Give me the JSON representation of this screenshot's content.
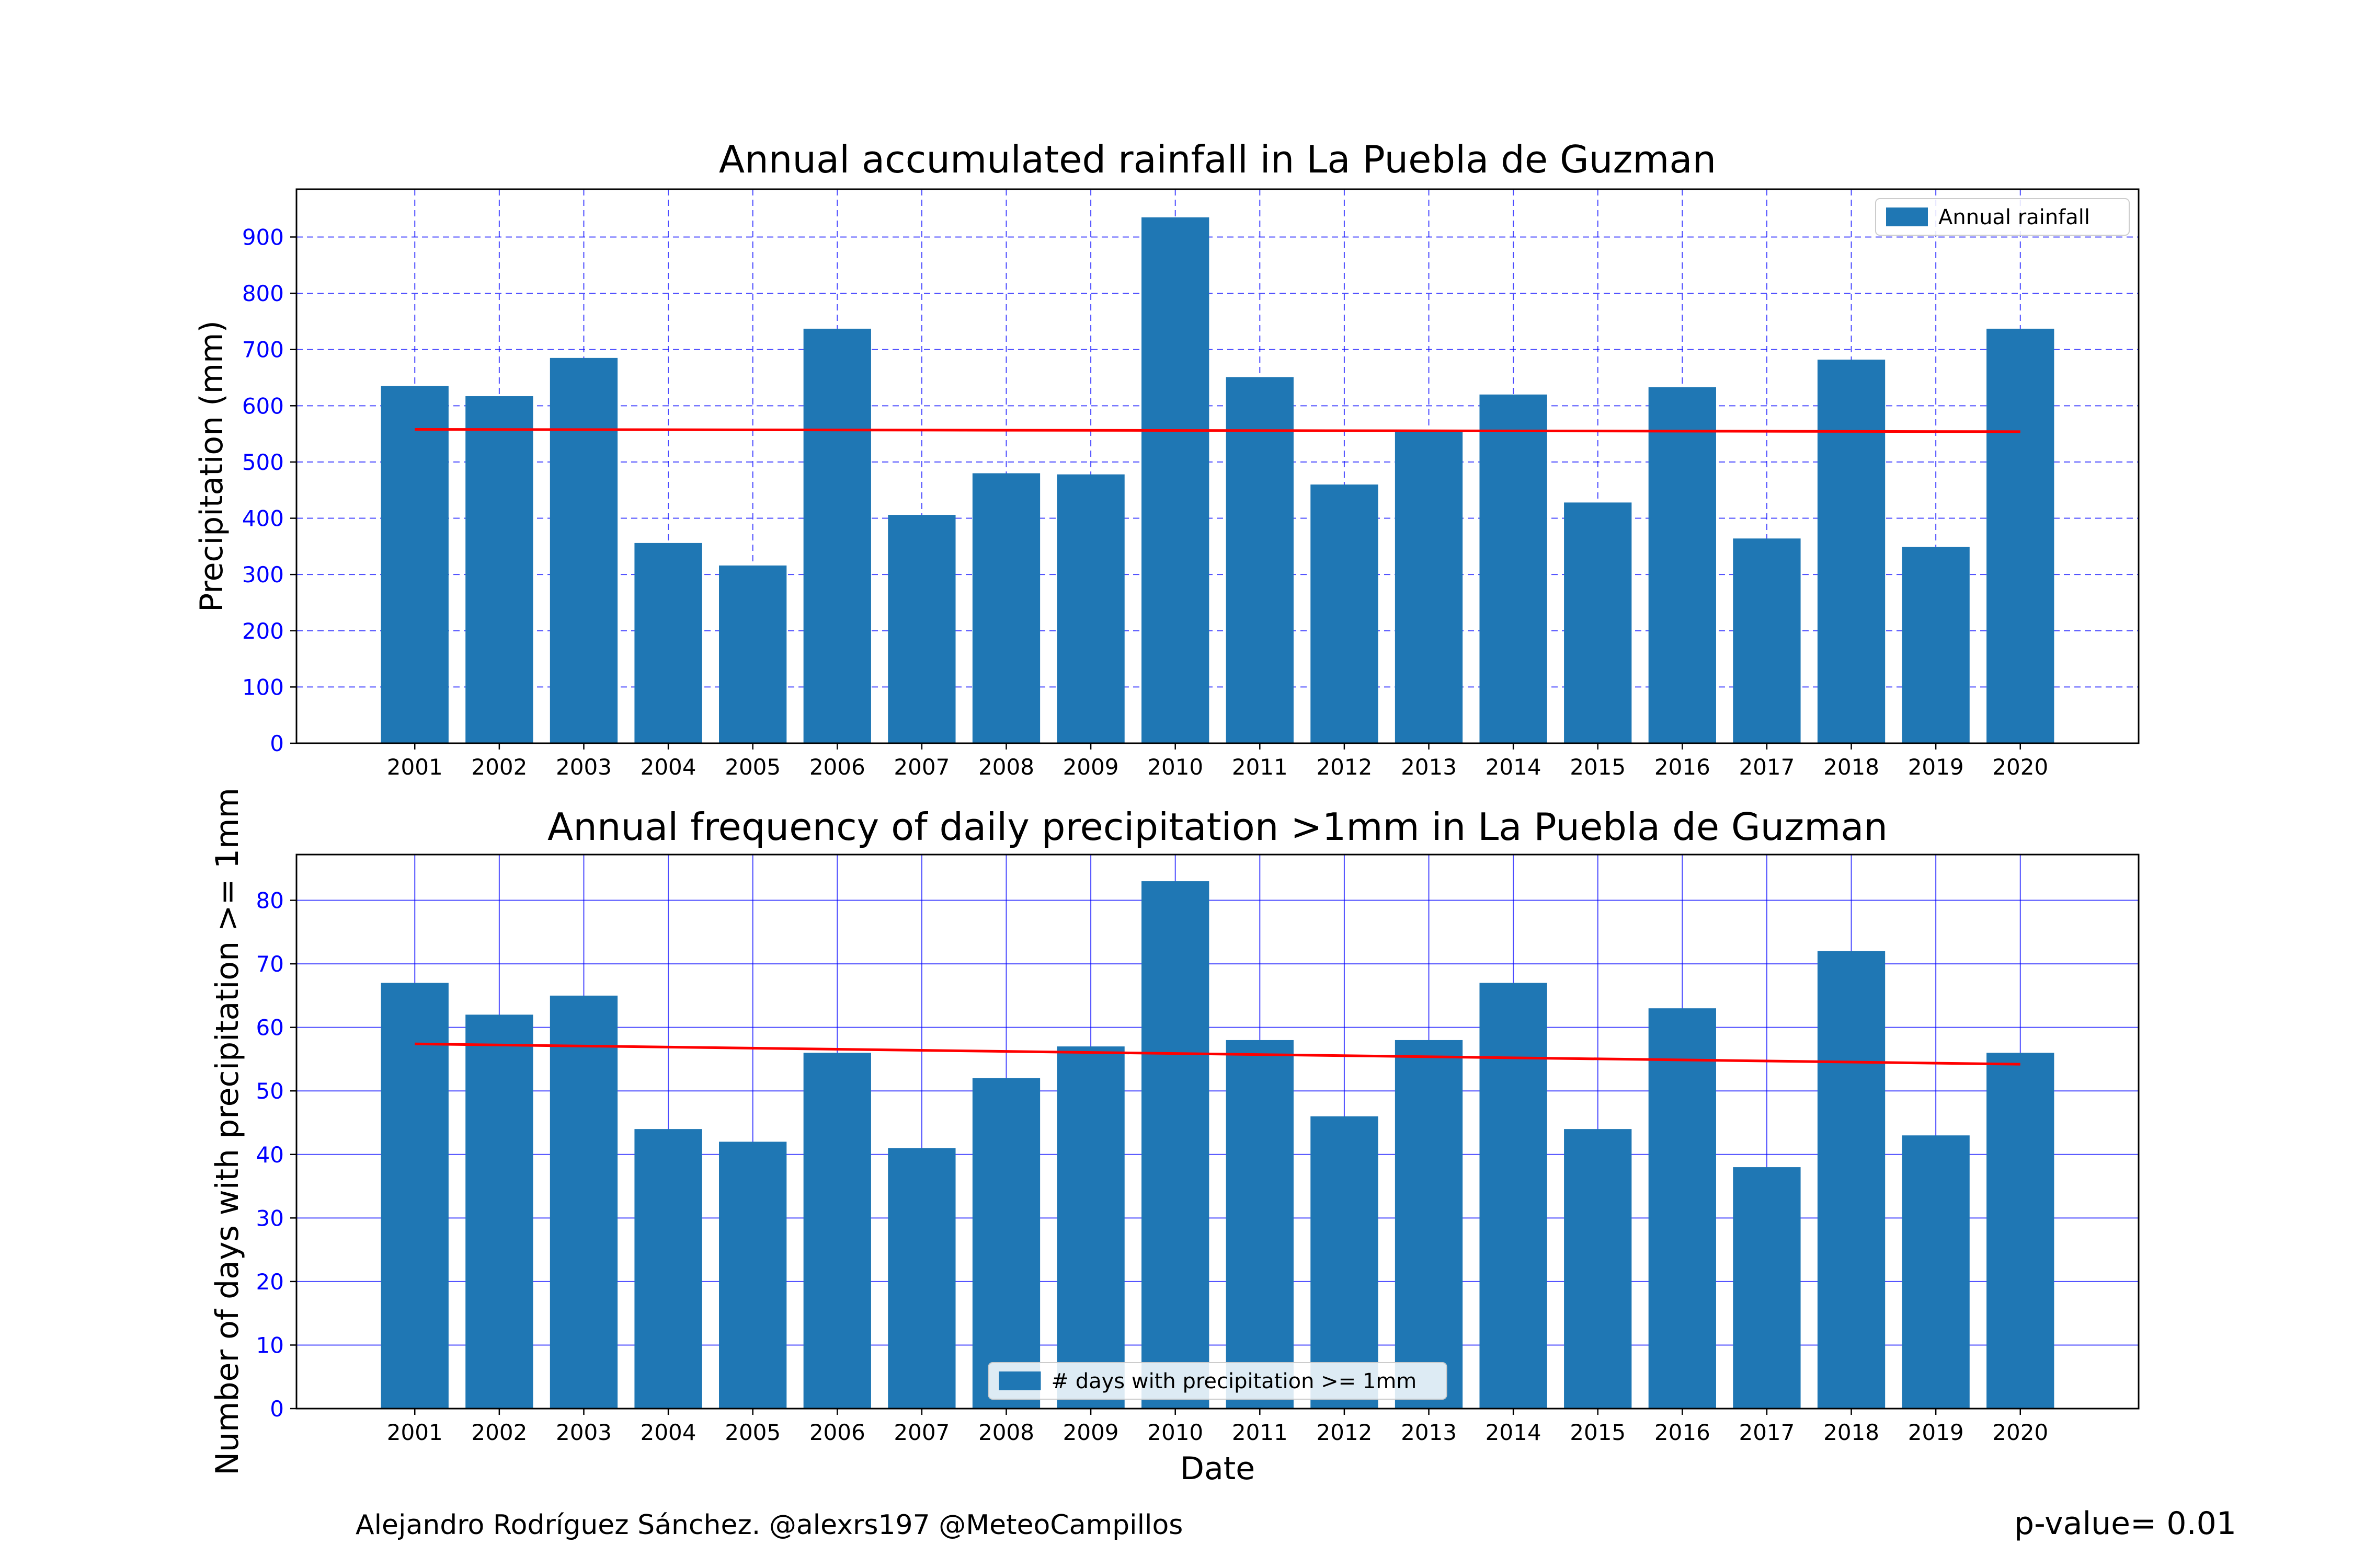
{
  "footer": {
    "credit": "Alejandro Rodríguez Sánchez. @alexrs197 @MeteoCampillos",
    "p_value": "p-value= 0.01"
  },
  "colors": {
    "bar": "#1f77b4",
    "trend": "#ff0000",
    "grid": "#0000ff",
    "tick_label": "#0000ff"
  },
  "chart_data": [
    {
      "type": "bar",
      "title": "Annual accumulated rainfall in La Puebla de Guzman",
      "xlabel": "",
      "ylabel": "Precipitation (mm)",
      "categories": [
        "2001",
        "2002",
        "2003",
        "2004",
        "2005",
        "2006",
        "2007",
        "2008",
        "2009",
        "2010",
        "2011",
        "2012",
        "2013",
        "2014",
        "2015",
        "2016",
        "2017",
        "2018",
        "2019",
        "2020"
      ],
      "series": [
        {
          "name": "Annual rainfall",
          "values": [
            635,
            617,
            685,
            356,
            316,
            737,
            406,
            480,
            478,
            935,
            651,
            460,
            555,
            620,
            428,
            633,
            364,
            682,
            349,
            737
          ]
        }
      ],
      "trend": {
        "start": 558,
        "end": 554
      },
      "ylim": [
        0,
        985
      ],
      "yticks": [
        0,
        100,
        200,
        300,
        400,
        500,
        600,
        700,
        800,
        900
      ],
      "grid": "dashed",
      "legend_position": "top-right"
    },
    {
      "type": "bar",
      "title": "Annual frequency of daily precipitation >1mm in La Puebla de Guzman",
      "xlabel": "Date",
      "ylabel": "Number of days with precipitation >= 1mm",
      "categories": [
        "2001",
        "2002",
        "2003",
        "2004",
        "2005",
        "2006",
        "2007",
        "2008",
        "2009",
        "2010",
        "2011",
        "2012",
        "2013",
        "2014",
        "2015",
        "2016",
        "2017",
        "2018",
        "2019",
        "2020"
      ],
      "series": [
        {
          "name": "# days with precipitation >= 1mm",
          "values": [
            67,
            62,
            65,
            44,
            42,
            56,
            41,
            52,
            57,
            83,
            58,
            46,
            58,
            67,
            44,
            63,
            38,
            72,
            43,
            56
          ]
        }
      ],
      "trend": {
        "start": 57.4,
        "end": 54.2
      },
      "ylim": [
        0,
        87.2
      ],
      "yticks": [
        0,
        10,
        20,
        30,
        40,
        50,
        60,
        70,
        80
      ],
      "grid": "solid",
      "legend_position": "bottom-center"
    }
  ]
}
